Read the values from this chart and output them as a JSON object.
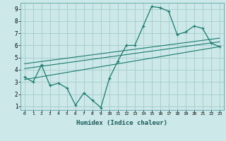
{
  "xlabel": "Humidex (Indice chaleur)",
  "bg_color": "#cce8e8",
  "line_color": "#1a7a6e",
  "grid_color": "#aacece",
  "xlim": [
    -0.5,
    23.5
  ],
  "ylim": [
    0.7,
    9.5
  ],
  "xticks": [
    0,
    1,
    2,
    3,
    4,
    5,
    6,
    7,
    8,
    9,
    10,
    11,
    12,
    13,
    14,
    15,
    16,
    17,
    18,
    19,
    20,
    21,
    22,
    23
  ],
  "yticks": [
    1,
    2,
    3,
    4,
    5,
    6,
    7,
    8,
    9
  ],
  "line1_x": [
    0,
    1,
    2,
    3,
    4,
    5,
    6,
    7,
    8,
    9,
    10,
    11,
    12,
    13,
    14,
    15,
    16,
    17,
    18,
    19,
    20,
    21,
    22,
    23
  ],
  "line1_y": [
    3.4,
    3.0,
    4.4,
    2.7,
    2.9,
    2.5,
    1.1,
    2.1,
    1.5,
    0.9,
    3.3,
    4.7,
    6.0,
    6.0,
    7.6,
    9.2,
    9.1,
    8.8,
    6.9,
    7.1,
    7.6,
    7.4,
    6.2,
    5.9
  ],
  "line2_x": [
    0,
    23
  ],
  "line2_y": [
    3.2,
    5.9
  ],
  "line3_x": [
    0,
    23
  ],
  "line3_y": [
    4.1,
    6.3
  ],
  "line4_x": [
    0,
    23
  ],
  "line4_y": [
    4.5,
    6.6
  ]
}
